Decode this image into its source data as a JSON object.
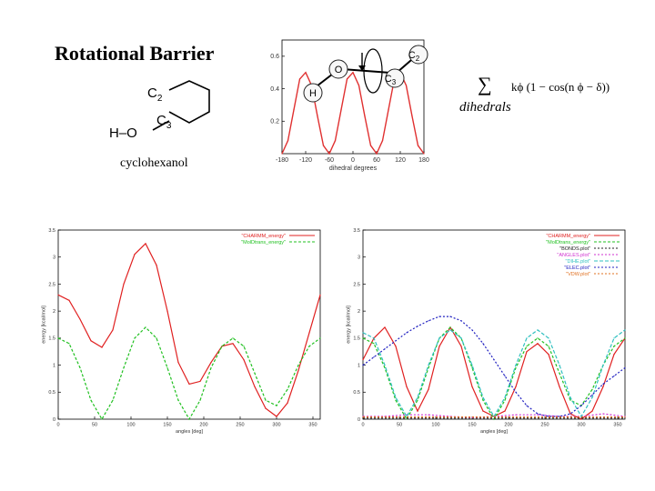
{
  "slide": {
    "title": "Rotational Barrier",
    "molecule_caption": "cyclohexanol",
    "molecule_atoms": {
      "c2": "C",
      "c2_sub": "2",
      "c3": "C",
      "c3_sub": "3",
      "o": "O",
      "h": "H",
      "bond_h_o": "H–O"
    }
  },
  "formula": {
    "sum": "∑",
    "subscript": "dihedrals",
    "expression": "kϕ (1 − cos(n ϕ − δ))"
  },
  "inset": {
    "atom_o": "O",
    "atom_h": "H",
    "atom_c3": "C",
    "atom_c3_sub": "3",
    "atom_c2": "C",
    "atom_c2_sub": "2",
    "xlabel": "dihedral degrees"
  },
  "chart_data": [
    {
      "type": "line",
      "name": "inset",
      "xlabel": "dihedral degrees",
      "ylabel": "",
      "xlim": [
        -180,
        180
      ],
      "ylim": [
        0,
        0.7
      ],
      "x_ticks": [
        -180,
        -120,
        -60,
        0,
        60,
        120,
        180
      ],
      "x_tick_labels": [
        "-180",
        "-120",
        "-60",
        "0",
        "60",
        "120",
        "180"
      ],
      "y_ticks": [
        0.2,
        0.4,
        0.6
      ],
      "y_tick_labels": [
        "0.2",
        "0.4",
        "0.6"
      ],
      "series": [
        {
          "color": "#e03030",
          "x": [
            -180,
            -165,
            -150,
            -135,
            -120,
            -105,
            -90,
            -75,
            -60,
            -45,
            -30,
            -15,
            0,
            15,
            30,
            45,
            60,
            75,
            90,
            105,
            120,
            135,
            150,
            165,
            180
          ],
          "y": [
            0.0,
            0.08,
            0.27,
            0.46,
            0.5,
            0.42,
            0.23,
            0.05,
            0.0,
            0.08,
            0.27,
            0.46,
            0.5,
            0.42,
            0.23,
            0.05,
            0.0,
            0.08,
            0.27,
            0.46,
            0.5,
            0.42,
            0.23,
            0.05,
            0.0
          ]
        }
      ]
    },
    {
      "type": "line",
      "name": "left",
      "xlabel": "angles [deg]",
      "ylabel": "energy [kcal/mol]",
      "xlim": [
        0,
        360
      ],
      "ylim": [
        0,
        3.5
      ],
      "x_ticks": [
        0,
        50,
        100,
        150,
        200,
        250,
        300,
        350
      ],
      "x_tick_labels": [
        "0",
        "50",
        "100",
        "150",
        "200",
        "250",
        "300",
        "350"
      ],
      "y_ticks": [
        0,
        0.5,
        1,
        1.5,
        2,
        2.5,
        3,
        3.5
      ],
      "y_tick_labels": [
        "0",
        "0.5",
        "1",
        "1.5",
        "2",
        "2.5",
        "3",
        "3.5"
      ],
      "legend_position": "top-right",
      "series": [
        {
          "name": "\"CHARMM_energy\"",
          "color": "#e02020",
          "dash": "",
          "x": [
            0,
            15,
            30,
            45,
            60,
            75,
            90,
            105,
            120,
            135,
            150,
            165,
            180,
            195,
            210,
            225,
            240,
            255,
            270,
            285,
            300,
            315,
            330,
            345,
            360
          ],
          "y": [
            2.3,
            2.2,
            1.85,
            1.45,
            1.33,
            1.65,
            2.5,
            3.05,
            3.25,
            2.85,
            2.0,
            1.05,
            0.65,
            0.7,
            1.05,
            1.35,
            1.4,
            1.1,
            0.6,
            0.2,
            0.05,
            0.3,
            0.9,
            1.6,
            2.3
          ]
        },
        {
          "name": "\"MolDtrans_energy\"",
          "color": "#20c020",
          "dash": "3,2",
          "x": [
            0,
            15,
            30,
            45,
            60,
            75,
            90,
            105,
            120,
            135,
            150,
            165,
            180,
            195,
            210,
            225,
            240,
            255,
            270,
            285,
            300,
            315,
            330,
            345,
            360
          ],
          "y": [
            1.5,
            1.4,
            0.95,
            0.35,
            0.0,
            0.35,
            0.95,
            1.5,
            1.7,
            1.5,
            0.95,
            0.35,
            0.0,
            0.35,
            0.95,
            1.35,
            1.5,
            1.35,
            0.85,
            0.35,
            0.25,
            0.55,
            1.0,
            1.35,
            1.5
          ]
        }
      ]
    },
    {
      "type": "line",
      "name": "right",
      "xlabel": "angles [deg]",
      "ylabel": "energy [kcal/mol]",
      "xlim": [
        0,
        360
      ],
      "ylim": [
        0,
        3.5
      ],
      "x_ticks": [
        0,
        50,
        100,
        150,
        200,
        250,
        300,
        350
      ],
      "x_tick_labels": [
        "0",
        "50",
        "100",
        "150",
        "200",
        "250",
        "300",
        "350"
      ],
      "y_ticks": [
        0,
        0.5,
        1,
        1.5,
        2,
        2.5,
        3,
        3.5
      ],
      "y_tick_labels": [
        "0",
        "0.5",
        "1",
        "1.5",
        "2",
        "2.5",
        "3",
        "3.5"
      ],
      "legend_position": "top-right",
      "series": [
        {
          "name": "\"CHARMM_energy\"",
          "color": "#e02020",
          "dash": "",
          "x": [
            0,
            15,
            30,
            45,
            60,
            75,
            90,
            105,
            120,
            135,
            150,
            165,
            180,
            195,
            210,
            225,
            240,
            255,
            270,
            285,
            300,
            315,
            330,
            345,
            360
          ],
          "y": [
            1.1,
            1.5,
            1.7,
            1.35,
            0.6,
            0.15,
            0.55,
            1.35,
            1.7,
            1.35,
            0.6,
            0.15,
            0.05,
            0.15,
            0.6,
            1.25,
            1.4,
            1.2,
            0.6,
            0.1,
            0.0,
            0.15,
            0.6,
            1.2,
            1.5
          ]
        },
        {
          "name": "\"MolDtrans_energy\"",
          "color": "#20c020",
          "dash": "3,2",
          "x": [
            0,
            15,
            30,
            45,
            60,
            75,
            90,
            105,
            120,
            135,
            150,
            165,
            180,
            195,
            210,
            225,
            240,
            255,
            270,
            285,
            300,
            315,
            330,
            345,
            360
          ],
          "y": [
            1.5,
            1.4,
            0.95,
            0.35,
            0.0,
            0.35,
            0.95,
            1.5,
            1.7,
            1.5,
            0.95,
            0.35,
            0.0,
            0.35,
            0.95,
            1.35,
            1.5,
            1.35,
            0.85,
            0.35,
            0.25,
            0.55,
            1.0,
            1.35,
            1.5
          ]
        },
        {
          "name": "\"BONDS.plot\"",
          "color": "#202020",
          "dash": "2,2",
          "x": [
            0,
            360
          ],
          "y": [
            0.02,
            0.02
          ]
        },
        {
          "name": "\"ANGLES.plot\"",
          "color": "#d030d0",
          "dash": "2,2",
          "x": [
            0,
            30,
            60,
            90,
            120,
            150,
            180,
            210,
            240,
            270,
            300,
            330,
            360
          ],
          "y": [
            0.05,
            0.05,
            0.08,
            0.08,
            0.05,
            0.03,
            0.05,
            0.08,
            0.08,
            0.05,
            0.05,
            0.1,
            0.05
          ]
        },
        {
          "name": "\"DIHE.plot\"",
          "color": "#30c0c0",
          "dash": "4,2",
          "x": [
            0,
            15,
            30,
            45,
            60,
            75,
            90,
            105,
            120,
            135,
            150,
            165,
            180,
            195,
            210,
            225,
            240,
            255,
            270,
            285,
            300,
            315,
            330,
            345,
            360
          ],
          "y": [
            1.6,
            1.5,
            1.0,
            0.4,
            0.05,
            0.4,
            1.0,
            1.5,
            1.65,
            1.5,
            1.0,
            0.4,
            0.05,
            0.4,
            1.0,
            1.5,
            1.65,
            1.5,
            1.0,
            0.4,
            0.05,
            0.4,
            1.0,
            1.5,
            1.65
          ]
        },
        {
          "name": "\"ELEC.plot\"",
          "color": "#2020c0",
          "dash": "2,2",
          "x": [
            0,
            15,
            30,
            45,
            60,
            75,
            90,
            105,
            120,
            135,
            150,
            165,
            180,
            195,
            210,
            225,
            240,
            255,
            270,
            285,
            300,
            315,
            330,
            345,
            360
          ],
          "y": [
            1.0,
            1.15,
            1.3,
            1.45,
            1.6,
            1.72,
            1.82,
            1.9,
            1.9,
            1.82,
            1.65,
            1.4,
            1.1,
            0.8,
            0.5,
            0.25,
            0.1,
            0.05,
            0.05,
            0.1,
            0.25,
            0.45,
            0.65,
            0.8,
            0.95
          ]
        },
        {
          "name": "\"VDW.plot\"",
          "color": "#e07020",
          "dash": "2,2",
          "x": [
            0,
            360
          ],
          "y": [
            0.04,
            0.04
          ]
        }
      ]
    }
  ]
}
